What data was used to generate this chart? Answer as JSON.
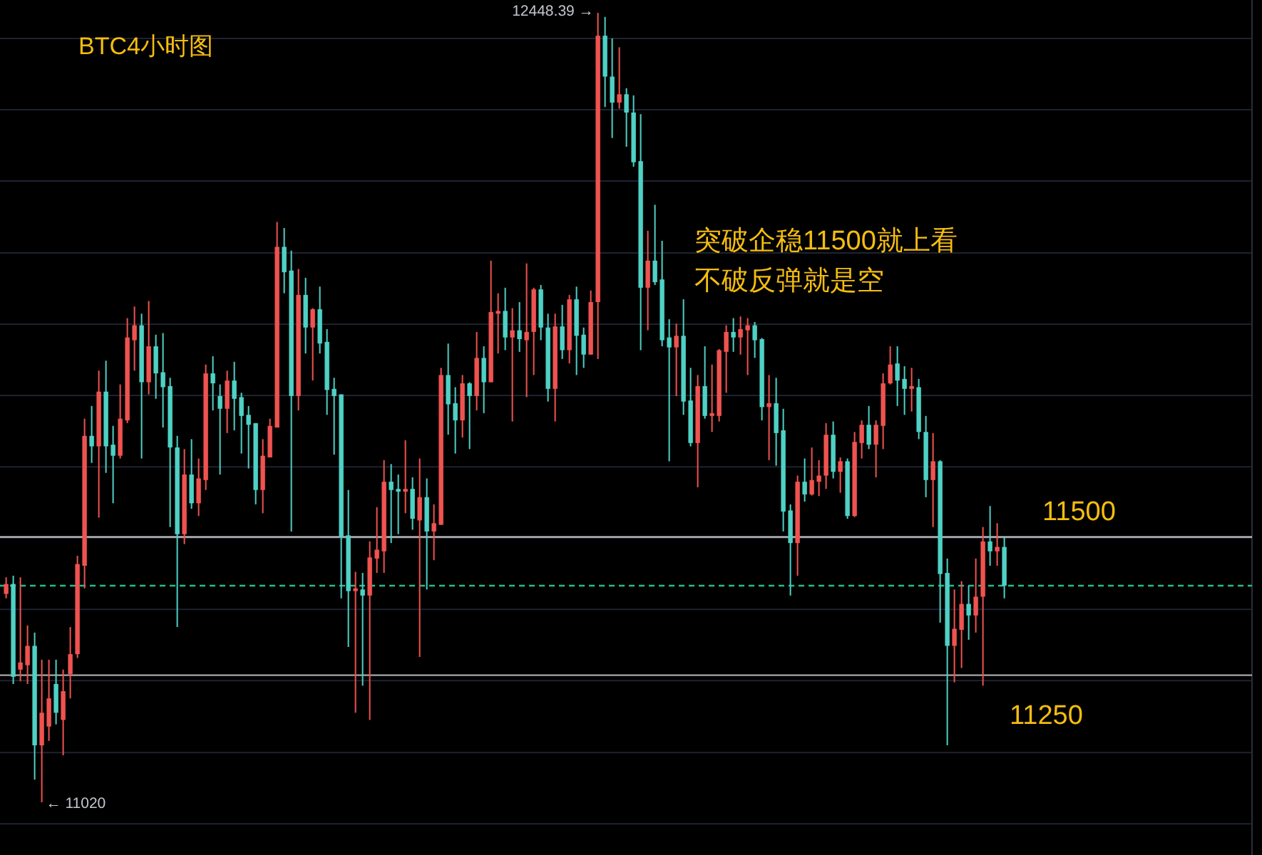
{
  "chart_data": {
    "type": "candlestick",
    "title": "BTC4小时图",
    "annotations": [
      "突破企稳11500就上看",
      "不破反弹就是空",
      "12448.39 →",
      "← 11020"
    ],
    "categories": [
      null,
      null,
      null,
      null,
      null,
      null,
      null,
      null,
      null,
      null,
      null,
      null,
      null,
      null,
      null,
      null,
      null,
      null,
      null,
      null,
      null,
      null,
      null,
      null,
      null,
      null,
      null,
      null,
      null,
      null,
      null,
      null,
      null,
      null,
      null,
      null,
      null,
      null,
      null,
      null,
      null,
      null,
      null,
      null,
      null,
      null,
      null,
      null,
      null,
      null,
      null,
      null,
      null,
      null,
      null,
      null,
      null,
      null,
      null,
      null,
      null,
      null,
      null,
      null,
      null,
      null,
      null,
      null,
      null,
      null,
      null,
      null,
      null,
      null,
      null,
      null,
      null,
      null,
      null,
      null,
      null,
      null,
      null,
      null,
      null,
      null,
      null,
      null,
      null,
      null,
      null,
      null,
      null,
      null,
      null,
      null,
      null,
      null,
      null,
      null,
      null,
      null,
      null,
      null,
      null,
      null,
      null,
      null,
      null,
      null,
      null,
      null,
      null,
      null,
      null,
      null,
      null,
      null,
      null,
      null,
      null,
      null,
      null,
      null,
      null,
      null,
      null,
      null,
      null,
      null,
      null,
      null,
      null,
      null,
      null,
      null,
      null,
      null,
      null,
      null,
      null
    ],
    "ohlc": [
      [
        11397,
        11427,
        11389,
        11415
      ],
      [
        11415,
        11430,
        11234,
        11247
      ],
      [
        11260,
        11427,
        11239,
        11273
      ],
      [
        11268,
        11340,
        11234,
        11303
      ],
      [
        11303,
        11327,
        11061,
        11123
      ],
      [
        11123,
        11278,
        11020,
        11182
      ],
      [
        11157,
        11278,
        11131,
        11208
      ],
      [
        11234,
        11278,
        11161,
        11182
      ],
      [
        11169,
        11260,
        11105,
        11221
      ],
      [
        11252,
        11337,
        11208,
        11288
      ],
      [
        11288,
        11466,
        11281,
        11451
      ],
      [
        11448,
        11714,
        11407,
        11683
      ],
      [
        11683,
        11737,
        11634,
        11664
      ],
      [
        11664,
        11801,
        11535,
        11763
      ],
      [
        11763,
        11819,
        11616,
        11664
      ],
      [
        11667,
        11701,
        11561,
        11647
      ],
      [
        11647,
        11776,
        11642,
        11714
      ],
      [
        11711,
        11896,
        11706,
        11861
      ],
      [
        11856,
        11917,
        11801,
        11883
      ],
      [
        11883,
        11904,
        11642,
        11780
      ],
      [
        11780,
        11927,
        11758,
        11845
      ],
      [
        11845,
        11866,
        11750,
        11796
      ],
      [
        11798,
        11869,
        11698,
        11771
      ],
      [
        11773,
        11788,
        11518,
        11662
      ],
      [
        11662,
        11683,
        11337,
        11505
      ],
      [
        11505,
        11659,
        11487,
        11613
      ],
      [
        11613,
        11677,
        11551,
        11561
      ],
      [
        11561,
        11642,
        11538,
        11606
      ],
      [
        11603,
        11812,
        11585,
        11796
      ],
      [
        11796,
        11827,
        11729,
        11778
      ],
      [
        11755,
        11776,
        11613,
        11732
      ],
      [
        11732,
        11801,
        11688,
        11783
      ],
      [
        11783,
        11817,
        11693,
        11750
      ],
      [
        11753,
        11761,
        11651,
        11719
      ],
      [
        11721,
        11737,
        11624,
        11703
      ],
      [
        11706,
        11706,
        11559,
        11585
      ],
      [
        11585,
        11677,
        11543,
        11647
      ],
      [
        11644,
        11714,
        11644,
        11701
      ],
      [
        11698,
        12070,
        11698,
        12025
      ],
      [
        12025,
        12059,
        11941,
        11979
      ],
      [
        11982,
        12018,
        11510,
        11755
      ],
      [
        11755,
        11985,
        11729,
        11938
      ],
      [
        11938,
        11969,
        11832,
        11879
      ],
      [
        11879,
        11914,
        11783,
        11912
      ],
      [
        11912,
        11953,
        11832,
        11850
      ],
      [
        11853,
        11876,
        11721,
        11766
      ],
      [
        11768,
        11788,
        11649,
        11755
      ],
      [
        11758,
        11758,
        11389,
        11500
      ],
      [
        11503,
        11585,
        11301,
        11402
      ],
      [
        11402,
        11437,
        11182,
        11407
      ],
      [
        11405,
        11435,
        11231,
        11394
      ],
      [
        11394,
        11492,
        11169,
        11463
      ],
      [
        11461,
        11554,
        11435,
        11477
      ],
      [
        11474,
        11639,
        11435,
        11600
      ],
      [
        11600,
        11632,
        11489,
        11585
      ],
      [
        11587,
        11613,
        11505,
        11582
      ],
      [
        11582,
        11675,
        11543,
        11587
      ],
      [
        11587,
        11608,
        11513,
        11533
      ],
      [
        11530,
        11642,
        11283,
        11572
      ],
      [
        11572,
        11606,
        11405,
        11510
      ],
      [
        11510,
        11559,
        11458,
        11525
      ],
      [
        11522,
        11806,
        11522,
        11793
      ],
      [
        11793,
        11850,
        11685,
        11740
      ],
      [
        11742,
        11771,
        11651,
        11711
      ],
      [
        11711,
        11793,
        11680,
        11778
      ],
      [
        11778,
        11780,
        11659,
        11755
      ],
      [
        11755,
        11871,
        11729,
        11824
      ],
      [
        11824,
        11845,
        11724,
        11780
      ],
      [
        11780,
        12000,
        11780,
        11907
      ],
      [
        11904,
        11941,
        11832,
        11909
      ],
      [
        11909,
        11951,
        11838,
        11861
      ],
      [
        11861,
        11914,
        11709,
        11874
      ],
      [
        11874,
        11925,
        11835,
        11858
      ],
      [
        11856,
        11995,
        11753,
        11871
      ],
      [
        11871,
        11951,
        11793,
        11948
      ],
      [
        11948,
        11956,
        11856,
        11879
      ],
      [
        11879,
        11904,
        11745,
        11768
      ],
      [
        11768,
        11904,
        11709,
        11881
      ],
      [
        11881,
        11920,
        11822,
        11838
      ],
      [
        11838,
        11938,
        11814,
        11930
      ],
      [
        11930,
        11953,
        11793,
        11864
      ],
      [
        11866,
        11879,
        11806,
        11830
      ],
      [
        11830,
        11946,
        11830,
        11925
      ],
      [
        11925,
        12448.39,
        11822,
        12407
      ],
      [
        12407,
        12441,
        12278,
        12333
      ],
      [
        12333,
        12402,
        12222,
        12286
      ],
      [
        12286,
        12386,
        12275,
        12301
      ],
      [
        12301,
        12312,
        12206,
        12268
      ],
      [
        12268,
        12299,
        12170,
        12178
      ],
      [
        12180,
        12265,
        11838,
        11951
      ],
      [
        11951,
        12054,
        11874,
        12000
      ],
      [
        12000,
        12101,
        11956,
        11961
      ],
      [
        11966,
        12036,
        11845,
        11856
      ],
      [
        11861,
        11894,
        11637,
        11843
      ],
      [
        11843,
        11886,
        11755,
        11864
      ],
      [
        11864,
        11930,
        11721,
        11745
      ],
      [
        11747,
        11806,
        11664,
        11670
      ],
      [
        11670,
        11793,
        11590,
        11773
      ],
      [
        11773,
        11845,
        11714,
        11719
      ],
      [
        11719,
        11812,
        11690,
        11724
      ],
      [
        11719,
        11840,
        11709,
        11838
      ],
      [
        11835,
        11883,
        11761,
        11871
      ],
      [
        11871,
        11896,
        11835,
        11861
      ],
      [
        11861,
        11899,
        11830,
        11876
      ],
      [
        11874,
        11896,
        11793,
        11883
      ],
      [
        11883,
        11889,
        11824,
        11856
      ],
      [
        11858,
        11860,
        11711,
        11735
      ],
      [
        11735,
        11793,
        11639,
        11742
      ],
      [
        11742,
        11788,
        11629,
        11688
      ],
      [
        11693,
        11732,
        11510,
        11546
      ],
      [
        11548,
        11559,
        11394,
        11489
      ],
      [
        11489,
        11611,
        11430,
        11600
      ],
      [
        11600,
        11642,
        11564,
        11577
      ],
      [
        11577,
        11662,
        11575,
        11603
      ],
      [
        11600,
        11639,
        11574,
        11611
      ],
      [
        11611,
        11706,
        11587,
        11685
      ],
      [
        11685,
        11709,
        11606,
        11618
      ],
      [
        11618,
        11644,
        11580,
        11637
      ],
      [
        11637,
        11642,
        11533,
        11538
      ],
      [
        11538,
        11690,
        11536,
        11672
      ],
      [
        11670,
        11711,
        11642,
        11703
      ],
      [
        11703,
        11737,
        11659,
        11667
      ],
      [
        11667,
        11711,
        11608,
        11703
      ],
      [
        11701,
        11796,
        11659,
        11778
      ],
      [
        11778,
        11845,
        11776,
        11812
      ],
      [
        11814,
        11845,
        11737,
        11783
      ],
      [
        11786,
        11809,
        11721,
        11768
      ],
      [
        11768,
        11806,
        11727,
        11773
      ],
      [
        11771,
        11786,
        11677,
        11690
      ],
      [
        11690,
        11719,
        11572,
        11603
      ],
      [
        11603,
        11688,
        11518,
        11637
      ],
      [
        11637,
        11639,
        11345,
        11433
      ],
      [
        11435,
        11461,
        11123,
        11303
      ],
      [
        11303,
        11405,
        11237,
        11334
      ],
      [
        11332,
        11420,
        11263,
        11379
      ],
      [
        11379,
        11412,
        11314,
        11358
      ],
      [
        11358,
        11461,
        11327,
        11392
      ],
      [
        11392,
        11518,
        11231,
        11492
      ],
      [
        11492,
        11556,
        11448,
        11474
      ],
      [
        11474,
        11525,
        11448,
        11482
      ],
      [
        11482,
        11500,
        11389,
        11412
      ]
    ],
    "colors": [
      "#ef5350",
      "#4fd1c5",
      "#ef5350",
      "#ef5350",
      "#4fd1c5",
      "#ef5350",
      "#ef5350",
      "#4fd1c5",
      "#ef5350",
      "#ef5350",
      "#ef5350",
      "#ef5350",
      "#4fd1c5",
      "#ef5350",
      "#4fd1c5",
      "#4fd1c5",
      "#ef5350",
      "#ef5350",
      "#ef5350",
      "#4fd1c5",
      "#ef5350",
      "#4fd1c5",
      "#4fd1c5",
      "#4fd1c5",
      "#4fd1c5",
      "#ef5350",
      "#4fd1c5",
      "#ef5350",
      "#ef5350",
      "#4fd1c5",
      "#4fd1c5",
      "#ef5350",
      "#4fd1c5",
      "#4fd1c5",
      "#4fd1c5",
      "#4fd1c5",
      "#ef5350",
      "#ef5350",
      "#ef5350",
      "#4fd1c5",
      "#4fd1c5",
      "#ef5350",
      "#4fd1c5",
      "#ef5350",
      "#4fd1c5",
      "#4fd1c5",
      "#4fd1c5",
      "#4fd1c5",
      "#4fd1c5",
      "#ef5350",
      "#4fd1c5",
      "#ef5350",
      "#ef5350",
      "#ef5350",
      "#4fd1c5",
      "#4fd1c5",
      "#ef5350",
      "#4fd1c5",
      "#ef5350",
      "#4fd1c5",
      "#ef5350",
      "#ef5350",
      "#4fd1c5",
      "#4fd1c5",
      "#ef5350",
      "#4fd1c5",
      "#ef5350",
      "#4fd1c5",
      "#ef5350",
      "#ef5350",
      "#4fd1c5",
      "#ef5350",
      "#4fd1c5",
      "#ef5350",
      "#ef5350",
      "#4fd1c5",
      "#4fd1c5",
      "#ef5350",
      "#4fd1c5",
      "#ef5350",
      "#4fd1c5",
      "#4fd1c5",
      "#ef5350",
      "#ef5350",
      "#4fd1c5",
      "#4fd1c5",
      "#ef5350",
      "#4fd1c5",
      "#4fd1c5",
      "#4fd1c5",
      "#ef5350",
      "#4fd1c5",
      "#4fd1c5",
      "#4fd1c5",
      "#ef5350",
      "#4fd1c5",
      "#4fd1c5",
      "#ef5350",
      "#4fd1c5",
      "#ef5350",
      "#ef5350",
      "#ef5350",
      "#4fd1c5",
      "#ef5350",
      "#ef5350",
      "#4fd1c5",
      "#4fd1c5",
      "#ef5350",
      "#4fd1c5",
      "#4fd1c5",
      "#4fd1c5",
      "#ef5350",
      "#4fd1c5",
      "#ef5350",
      "#ef5350",
      "#ef5350",
      "#4fd1c5",
      "#ef5350",
      "#4fd1c5",
      "#ef5350",
      "#ef5350",
      "#4fd1c5",
      "#ef5350",
      "#ef5350",
      "#ef5350",
      "#4fd1c5",
      "#4fd1c5",
      "#ef5350",
      "#4fd1c5",
      "#4fd1c5",
      "#ef5350",
      "#4fd1c5",
      "#4fd1c5",
      "#ef5350",
      "#ef5350",
      "#4fd1c5",
      "#ef5350",
      "#ef5350",
      "#4fd1c5",
      "#ef5350",
      "#4fd1c5"
    ],
    "yticks": [
      {
        "value": 12402,
        "label": null
      },
      {
        "value": 12273,
        "label": null
      },
      {
        "value": 12144,
        "label": null
      },
      {
        "value": 12014,
        "label": null
      },
      {
        "value": 11885,
        "label": null
      },
      {
        "value": 11756,
        "label": null
      },
      {
        "value": 11627,
        "label": null
      },
      {
        "value": 11498,
        "label": null
      },
      {
        "value": 11369,
        "label": null
      },
      {
        "value": 11240,
        "label": null
      },
      {
        "value": 11110,
        "label": null
      },
      {
        "value": 10981,
        "label": null
      }
    ],
    "grid": "y",
    "ref_lines": [
      {
        "axis": "y",
        "value": 11500,
        "label": "11500",
        "color": "#c8c8c8"
      },
      {
        "axis": "y",
        "value": 11250,
        "label": "11250",
        "color": "#a8a8a8"
      },
      {
        "axis": "y",
        "value": 11412,
        "color": "#1fbf8f",
        "line_style": "dashed"
      }
    ]
  }
}
